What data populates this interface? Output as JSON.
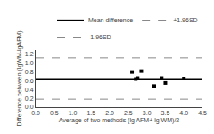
{
  "chart_data": {
    "type": "scatter",
    "xlabel": "Average of two methods (lg AFM+ lg WM)/2",
    "ylabel": "Difference between (lgWM-lgAFM)",
    "series": [
      {
        "name": "Mean difference",
        "type": "hline",
        "color": "#000000",
        "line_style": "solid",
        "values": [
          0.645
        ]
      },
      {
        "name": "+1.96SD",
        "type": "hline",
        "color": "#888888",
        "line_style": "dashed",
        "values": [
          1.12
        ]
      },
      {
        "name": "-1.96SD",
        "type": "hline",
        "color": "#888888",
        "line_style": "dashed",
        "values": [
          0.18
        ]
      },
      {
        "type": "scatter",
        "color": "#000000",
        "marker": "square",
        "x": [
          2.6,
          2.7,
          2.75,
          2.85,
          3.2,
          3.4,
          3.5,
          4.0
        ],
        "values": [
          0.8,
          0.64,
          0.66,
          0.82,
          0.48,
          0.66,
          0.55,
          0.65
        ]
      }
    ],
    "xlim": [
      0,
      4.5
    ],
    "ylim": [
      0,
      1.3
    ],
    "xticks": [
      {
        "value": 0,
        "label": "0.0"
      },
      0.5,
      {
        "value": 1,
        "label": "1.0"
      },
      1.5,
      {
        "value": 2,
        "label": "2.0"
      },
      2.5,
      {
        "value": 3,
        "label": "3.0"
      },
      3.5,
      {
        "value": 4,
        "label": "4.0"
      },
      4.5
    ],
    "yticks": [
      {
        "value": 0,
        "label": "0.0"
      },
      0.2,
      0.4,
      0.6,
      0.8,
      {
        "value": 1.0,
        "label": "1.0"
      },
      1.2
    ],
    "grid": false,
    "legend": "upper right"
  }
}
